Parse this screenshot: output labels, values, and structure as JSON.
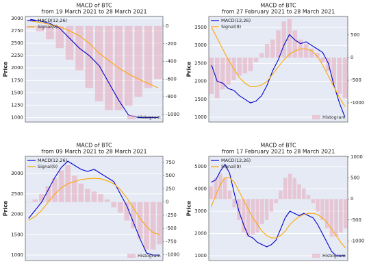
{
  "chart_data": [
    {
      "type": "macd",
      "title": "MACD of BTC",
      "subtitle": "from 19 March 2021 to 28 March 2021",
      "ylabel": "Price",
      "ylim": [
        910,
        3040
      ],
      "yticks": [
        1000,
        1250,
        1500,
        1750,
        2000,
        2250,
        2500,
        2750,
        3000
      ],
      "y2lim": [
        -1085,
        108
      ],
      "y2ticks": [
        0,
        -200,
        -400,
        -600,
        -800,
        -1000
      ],
      "grid": true,
      "legend": "upper left",
      "bar_legend": "lower right",
      "series": [
        {
          "name": "MACD(12,26)",
          "color": "#0000cc",
          "values": [
            2980,
            2950,
            2900,
            2800,
            2600,
            2400,
            2250,
            2050,
            1700,
            1350,
            1050,
            1000,
            1000,
            1000
          ]
        },
        {
          "name": "Signal(9)",
          "color": "#ffa500",
          "values": [
            2950,
            2920,
            2880,
            2830,
            2750,
            2650,
            2500,
            2300,
            2150,
            2000,
            1880,
            1780,
            1690,
            1600
          ]
        },
        {
          "name": "Histogram",
          "color": "#e8a7b9",
          "axis": "y2",
          "values": [
            -20,
            -60,
            -150,
            -250,
            -380,
            -500,
            -700,
            -850,
            -950,
            -950,
            -900,
            -800,
            -700,
            -600
          ]
        }
      ]
    },
    {
      "type": "macd",
      "title": "MACD of BTC",
      "subtitle": "from 27 February 2021 to 28 March 2021",
      "ylabel": "Price",
      "ylim": [
        867,
        3805
      ],
      "yticks": [
        1000,
        1500,
        2000,
        2500,
        3000,
        3500
      ],
      "y2lim": [
        -1424,
        909
      ],
      "y2ticks": [
        500,
        0,
        -500,
        -1000
      ],
      "grid": true,
      "legend": "upper left",
      "bar_legend": "lower right",
      "series": [
        {
          "name": "MACD(12,26)",
          "color": "#0000cc",
          "values": [
            2450,
            2000,
            1950,
            1800,
            1750,
            1600,
            1500,
            1400,
            1450,
            1600,
            1900,
            2300,
            2600,
            3000,
            3300,
            3150,
            3050,
            3100,
            3000,
            2900,
            2800,
            2500,
            1900,
            1400,
            1000
          ]
        },
        {
          "name": "Signal(9)",
          "color": "#ffa500",
          "values": [
            3500,
            3200,
            2900,
            2600,
            2350,
            2100,
            1950,
            1850,
            1850,
            1900,
            2000,
            2200,
            2400,
            2600,
            2750,
            2850,
            2900,
            2900,
            2850,
            2700,
            2450,
            2150,
            1850,
            1550,
            1300
          ]
        },
        {
          "name": "Histogram",
          "color": "#e8a7b9",
          "axis": "y2",
          "values": [
            -800,
            -900,
            -700,
            -600,
            -500,
            -400,
            -350,
            -300,
            -100,
            100,
            300,
            400,
            600,
            800,
            850,
            600,
            400,
            300,
            200,
            100,
            -100,
            -300,
            -600,
            -800,
            -900
          ]
        }
      ]
    },
    {
      "type": "macd",
      "title": "MACD of BTC",
      "subtitle": "from 09 March 2021 to 28 March 2021",
      "ylabel": "Price",
      "ylim": [
        866,
        3420
      ],
      "yticks": [
        1000,
        1500,
        2000,
        2500,
        3000
      ],
      "y2lim": [
        -1109,
        867
      ],
      "y2ticks": [
        750,
        500,
        250,
        0,
        -250,
        -500,
        -750,
        -1000
      ],
      "grid": true,
      "legend": "upper left",
      "bar_legend": "lower right",
      "series": [
        {
          "name": "MACD(12,26)",
          "color": "#0000cc",
          "values": [
            1900,
            2100,
            2300,
            2600,
            2900,
            3150,
            3300,
            3200,
            3100,
            3050,
            3100,
            3000,
            2900,
            2800,
            2500,
            2200,
            1800,
            1400,
            1050,
            1000,
            1000
          ]
        },
        {
          "name": "Signal(9)",
          "color": "#ffa500",
          "values": [
            1850,
            1950,
            2100,
            2300,
            2500,
            2650,
            2750,
            2800,
            2850,
            2870,
            2880,
            2870,
            2820,
            2750,
            2600,
            2400,
            2150,
            1900,
            1700,
            1550,
            1500
          ]
        },
        {
          "name": "Histogram",
          "color": "#e8a7b9",
          "axis": "y2",
          "values": [
            0,
            50,
            150,
            300,
            450,
            600,
            700,
            500,
            350,
            250,
            200,
            150,
            50,
            -100,
            -200,
            -350,
            -500,
            -700,
            -900,
            -900,
            -800
          ]
        }
      ]
    },
    {
      "type": "macd",
      "title": "MACD of BTC",
      "subtitle": "from 17 February 2021 to 28 March 2021",
      "ylabel": "Price",
      "ylim": [
        785,
        5460
      ],
      "yticks": [
        1000,
        2000,
        3000,
        4000,
        5000
      ],
      "y2lim": [
        -1468,
        1016
      ],
      "y2ticks": [
        1000,
        500,
        0,
        -500,
        -1000
      ],
      "grid": true,
      "legend": "upper left",
      "bar_legend": "lower right",
      "series": [
        {
          "name": "MACD(12,26)",
          "color": "#0000cc",
          "values": [
            4300,
            4400,
            4800,
            5100,
            4700,
            3800,
            3000,
            2400,
            1900,
            1800,
            1600,
            1500,
            1400,
            1500,
            1700,
            2200,
            2700,
            3000,
            2900,
            2800,
            2900,
            2800,
            2700,
            2400,
            2000,
            1600,
            1200,
            1000,
            1000,
            1000
          ]
        },
        {
          "name": "Signal(9)",
          "color": "#ffa500",
          "values": [
            3200,
            3700,
            4200,
            4500,
            4500,
            4300,
            3900,
            3500,
            3100,
            2700,
            2400,
            2100,
            1900,
            1800,
            1800,
            1900,
            2100,
            2400,
            2600,
            2750,
            2850,
            2900,
            2900,
            2850,
            2700,
            2500,
            2200,
            1900,
            1600,
            1350
          ]
        },
        {
          "name": "Histogram",
          "color": "#e8a7b9",
          "axis": "y2",
          "values": [
            300,
            500,
            600,
            500,
            200,
            -200,
            -500,
            -800,
            -900,
            -850,
            -800,
            -600,
            -500,
            -300,
            -100,
            200,
            500,
            600,
            500,
            350,
            250,
            100,
            -100,
            -300,
            -500,
            -700,
            -900,
            -900,
            -800,
            -700
          ]
        }
      ]
    }
  ]
}
